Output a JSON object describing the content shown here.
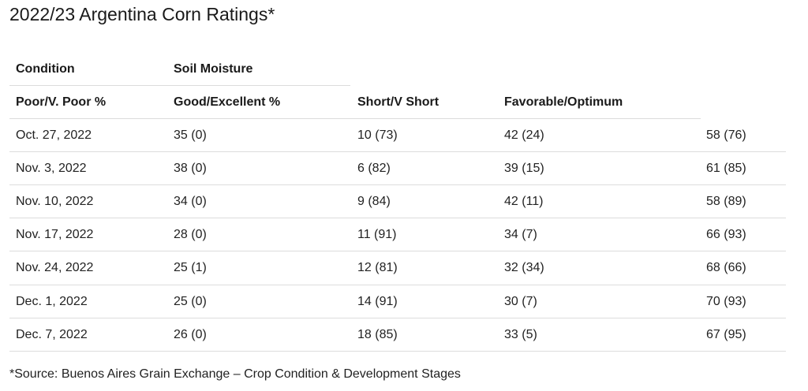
{
  "title": "2022/23 Argentina Corn Ratings*",
  "header_top": [
    "Condition",
    "Soil Moisture"
  ],
  "header_sub": [
    "Poor/V. Poor %",
    "Good/Excellent %",
    "Short/V Short",
    "Favorable/Optimum"
  ],
  "rows": [
    [
      "Oct. 27, 2022",
      "35 (0)",
      "10 (73)",
      "42 (24)",
      "58 (76)"
    ],
    [
      "Nov. 3, 2022",
      "38 (0)",
      "6 (82)",
      "39 (15)",
      "61 (85)"
    ],
    [
      "Nov. 10, 2022",
      "34 (0)",
      "9 (84)",
      "42 (11)",
      "58 (89)"
    ],
    [
      "Nov. 17, 2022",
      "28 (0)",
      "11 (91)",
      "34 (7)",
      "66 (93)"
    ],
    [
      "Nov. 24, 2022",
      "25 (1)",
      "12 (81)",
      "32 (34)",
      "68 (66)"
    ],
    [
      "Dec. 1, 2022",
      "25 (0)",
      "14 (91)",
      "30 (7)",
      "70 (93)"
    ],
    [
      "Dec. 7, 2022",
      "26 (0)",
      "18 (85)",
      "33 (5)",
      "67 (95)"
    ]
  ],
  "source": "*Source: Buenos Aires Grain Exchange – Crop Condition & Development Stages"
}
